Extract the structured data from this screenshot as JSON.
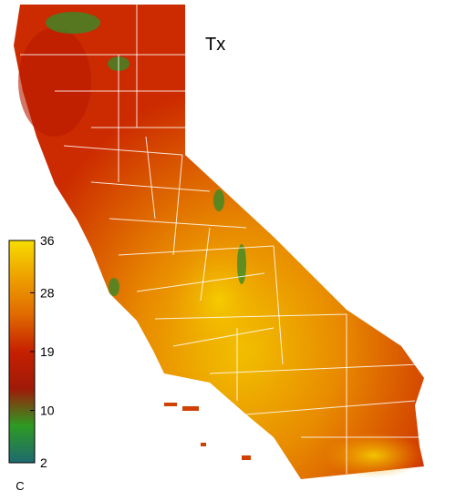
{
  "map": {
    "title": "Tx",
    "colorbar": {
      "label": "C",
      "range": [
        2,
        36
      ],
      "ticks": [
        36,
        28,
        19,
        10,
        2
      ],
      "colors": [
        "#f7dc00",
        "#eea000",
        "#e06a00",
        "#c62000",
        "#a01a08",
        "#2e9a22",
        "#1e6a70"
      ]
    }
  }
}
